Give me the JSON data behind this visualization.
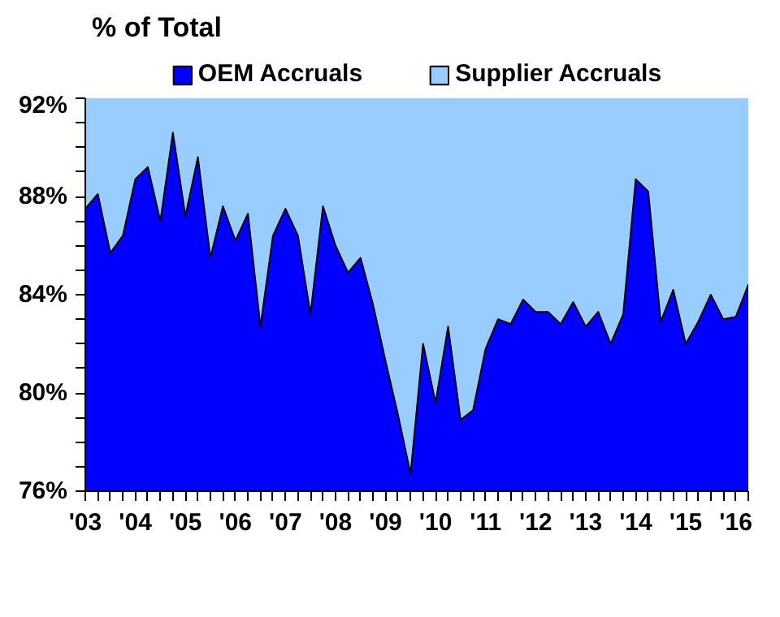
{
  "chart_data": {
    "type": "area",
    "title": "% of Total",
    "legend": "top",
    "x": [
      2003.0,
      2003.25,
      2003.5,
      2003.75,
      2004.0,
      2004.25,
      2004.5,
      2004.75,
      2005.0,
      2005.25,
      2005.5,
      2005.75,
      2006.0,
      2006.25,
      2006.5,
      2006.75,
      2007.0,
      2007.25,
      2007.5,
      2007.75,
      2008.0,
      2008.25,
      2008.5,
      2008.75,
      2009.0,
      2009.25,
      2009.5,
      2009.75,
      2010.0,
      2010.25,
      2010.5,
      2010.75,
      2011.0,
      2011.25,
      2011.5,
      2011.75,
      2012.0,
      2012.25,
      2012.5,
      2012.75,
      2013.0,
      2013.25,
      2013.5,
      2013.75,
      2014.0,
      2014.25,
      2014.5,
      2014.75,
      2015.0,
      2015.25,
      2015.5,
      2015.75,
      2016.0,
      2016.25
    ],
    "series": [
      {
        "name": "OEM Accruals",
        "color": "#0000ff",
        "values": [
          87.5,
          88.1,
          85.7,
          86.4,
          88.7,
          89.2,
          87.0,
          90.6,
          87.2,
          89.6,
          85.5,
          87.6,
          86.2,
          87.3,
          82.7,
          86.4,
          87.5,
          86.4,
          83.2,
          87.6,
          86.0,
          84.9,
          85.5,
          83.6,
          81.3,
          79.1,
          76.7,
          82.0,
          79.6,
          82.7,
          78.9,
          79.3,
          81.8,
          83.0,
          82.8,
          83.8,
          83.3,
          83.3,
          82.8,
          83.7,
          82.7,
          83.3,
          82.0,
          83.2,
          88.7,
          88.2,
          82.9,
          84.2,
          82.0,
          82.9,
          84.0,
          83.0,
          83.1,
          84.4
        ]
      }
    ],
    "bands": [
      {
        "axis": "y",
        "from": 76,
        "to": 92,
        "label": "Supplier Accruals",
        "color": "#99ccff"
      }
    ],
    "xlim": [
      2003,
      2016.25
    ],
    "xticks": [
      {
        "value": 2003,
        "label": "'03"
      },
      {
        "value": 2004,
        "label": "'04"
      },
      {
        "value": 2005,
        "label": "'05"
      },
      {
        "value": 2006,
        "label": "'06"
      },
      {
        "value": 2007,
        "label": "'07"
      },
      {
        "value": 2008,
        "label": "'08"
      },
      {
        "value": 2009,
        "label": "'09"
      },
      {
        "value": 2010,
        "label": "'10"
      },
      {
        "value": 2011,
        "label": "'11"
      },
      {
        "value": 2012,
        "label": "'12"
      },
      {
        "value": 2013,
        "label": "'13"
      },
      {
        "value": 2014,
        "label": "'14"
      },
      {
        "value": 2015,
        "label": "'15"
      },
      {
        "value": 2016,
        "label": "'16"
      }
    ],
    "ylim": [
      76,
      92
    ],
    "yticks": [
      {
        "value": 76,
        "label": "76%"
      },
      {
        "value": 77,
        "label": null
      },
      {
        "value": 78,
        "label": null
      },
      {
        "value": 79,
        "label": null
      },
      {
        "value": 80,
        "label": "80%"
      },
      {
        "value": 81,
        "label": null
      },
      {
        "value": 82,
        "label": null
      },
      {
        "value": 83,
        "label": null
      },
      {
        "value": 84,
        "label": "84%"
      },
      {
        "value": 85,
        "label": null
      },
      {
        "value": 86,
        "label": null
      },
      {
        "value": 87,
        "label": null
      },
      {
        "value": 88,
        "label": "88%"
      },
      {
        "value": 89,
        "label": null
      },
      {
        "value": 90,
        "label": null
      },
      {
        "value": 91,
        "label": null
      },
      {
        "value": 92,
        "label": "92%"
      }
    ]
  }
}
